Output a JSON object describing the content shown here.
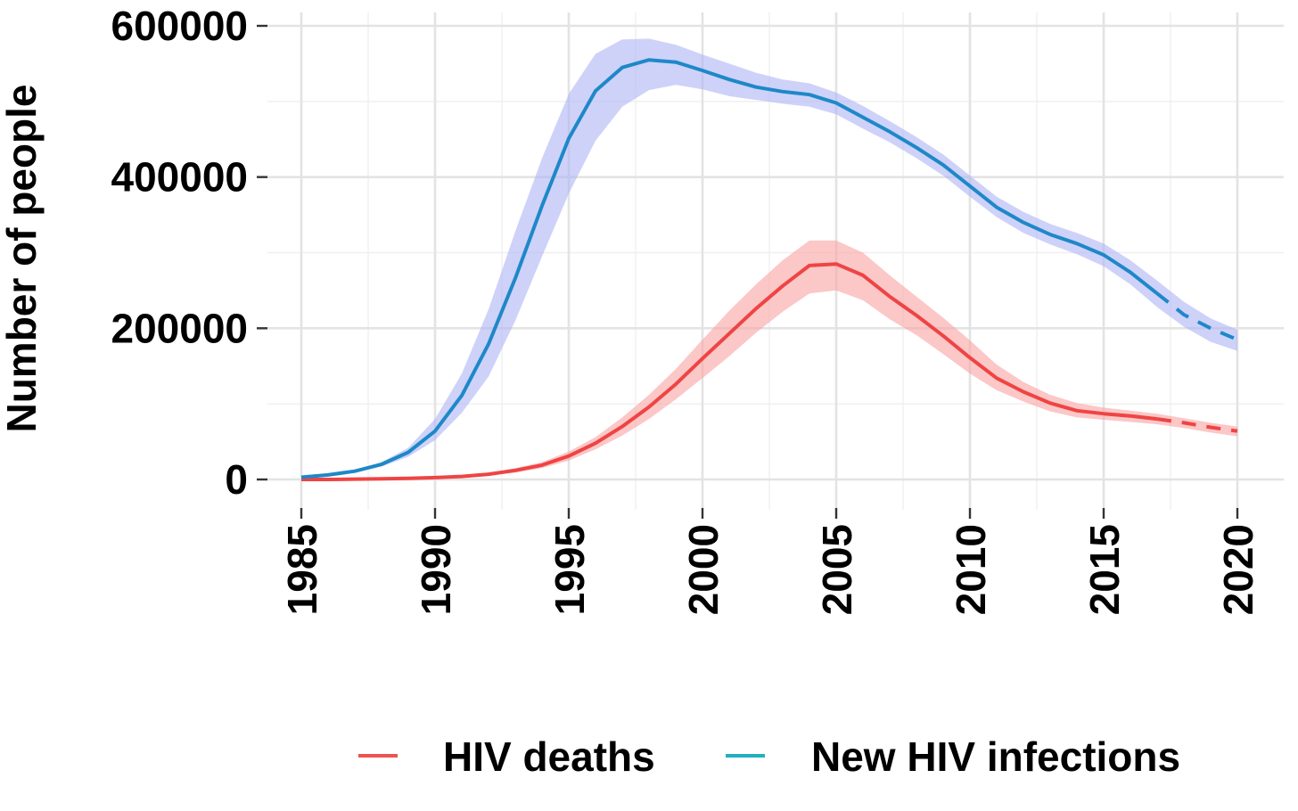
{
  "chart_data": {
    "type": "line",
    "title": "",
    "xlabel": "",
    "ylabel": "Number of people",
    "xlim": [
      1985,
      2020
    ],
    "ylim": [
      0,
      600000
    ],
    "x_ticks": [
      1985,
      1990,
      1995,
      2000,
      2005,
      2010,
      2015,
      2020
    ],
    "y_ticks": [
      0,
      200000,
      400000,
      600000
    ],
    "x_tick_labels": [
      "1985",
      "1990",
      "1995",
      "2000",
      "2005",
      "2010",
      "2015",
      "2020"
    ],
    "y_tick_labels": [
      "0",
      "200000",
      "400000",
      "600000"
    ],
    "grid": true,
    "legend_position": "bottom",
    "projection_start": 2017,
    "x": [
      1985,
      1986,
      1987,
      1988,
      1989,
      1990,
      1991,
      1992,
      1993,
      1994,
      1995,
      1996,
      1997,
      1998,
      1999,
      2000,
      2001,
      2002,
      2003,
      2004,
      2005,
      2006,
      2007,
      2008,
      2009,
      2010,
      2011,
      2012,
      2013,
      2014,
      2015,
      2016,
      2017,
      2018,
      2019,
      2020
    ],
    "series": [
      {
        "name": "HIV deaths",
        "color": "#ef4444",
        "band_color": "#f8a5a5",
        "values": [
          0,
          0,
          500,
          1000,
          1500,
          2500,
          4000,
          7000,
          12000,
          19000,
          31000,
          48000,
          70000,
          96000,
          126000,
          160000,
          193000,
          226000,
          256000,
          283000,
          285000,
          270000,
          242000,
          217000,
          190000,
          161000,
          134000,
          116000,
          101000,
          91000,
          87000,
          84000,
          80000,
          75000,
          69000,
          64000
        ],
        "lower": [
          0,
          0,
          300,
          700,
          1100,
          1800,
          3000,
          5000,
          9000,
          15000,
          25000,
          40000,
          58000,
          80000,
          106000,
          134000,
          163000,
          194000,
          222000,
          246000,
          250000,
          237000,
          212000,
          191000,
          166000,
          140000,
          118000,
          103000,
          90000,
          82000,
          79000,
          76000,
          73000,
          68000,
          62000,
          57000
        ],
        "upper": [
          0,
          0,
          700,
          1300,
          2000,
          3200,
          5000,
          9000,
          15000,
          23000,
          37000,
          56000,
          82000,
          112000,
          146000,
          185000,
          223000,
          258000,
          290000,
          316000,
          316000,
          300000,
          270000,
          242000,
          214000,
          184000,
          152000,
          129000,
          112000,
          101000,
          95000,
          91000,
          87000,
          81000,
          75000,
          70000
        ]
      },
      {
        "name": "New HIV infections",
        "color": "#1e88c8",
        "band_color": "#b0b6f5",
        "values": [
          3000,
          6000,
          11000,
          20000,
          36000,
          64000,
          111000,
          179000,
          266000,
          362000,
          451000,
          514000,
          545000,
          555000,
          552000,
          541000,
          529000,
          519000,
          513000,
          509000,
          498000,
          479000,
          460000,
          439000,
          416000,
          388000,
          360000,
          340000,
          324000,
          312000,
          297000,
          274000,
          246000,
          218000,
          200000,
          185000
        ],
        "lower": [
          2000,
          4500,
          9000,
          17000,
          30000,
          52000,
          88000,
          136000,
          210000,
          295000,
          378000,
          448000,
          493000,
          515000,
          522000,
          516000,
          507000,
          502000,
          497000,
          493000,
          483000,
          464000,
          446000,
          425000,
          402000,
          374000,
          347000,
          326000,
          311000,
          298000,
          282000,
          258000,
          228000,
          202000,
          182000,
          170000
        ],
        "upper": [
          4000,
          7500,
          13000,
          23000,
          42000,
          80000,
          140000,
          225000,
          328000,
          425000,
          510000,
          563000,
          582000,
          583000,
          575000,
          562000,
          550000,
          538000,
          529000,
          524000,
          512000,
          494000,
          474000,
          453000,
          430000,
          402000,
          374000,
          354000,
          338000,
          326000,
          312000,
          290000,
          263000,
          235000,
          213000,
          198000
        ]
      }
    ]
  }
}
